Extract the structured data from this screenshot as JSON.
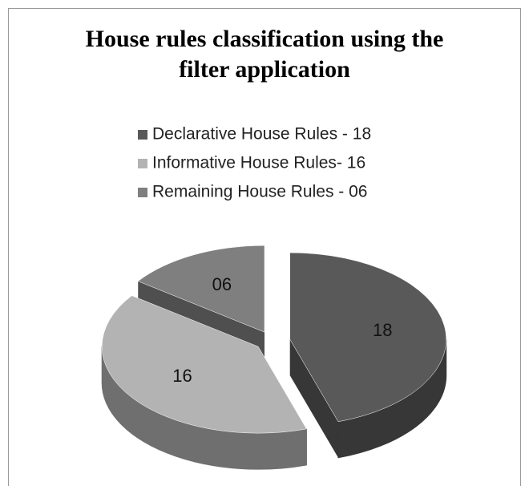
{
  "chart_data": {
    "type": "pie",
    "title": "House rules classification using the filter application",
    "categories": [
      "Declarative House Rules - 18",
      "Informative House Rules- 16",
      "Remaining House Rules - 06"
    ],
    "values": [
      18,
      16,
      6
    ],
    "value_labels": [
      "18",
      "16",
      "06"
    ],
    "colors": [
      "#595959",
      "#b3b3b3",
      "#7f7f7f"
    ],
    "legend": "top"
  }
}
